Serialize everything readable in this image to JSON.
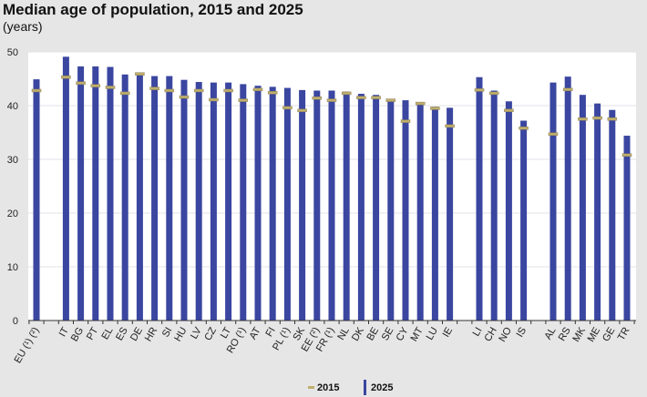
{
  "chart_data": {
    "type": "bar",
    "title": "Median age of population, 2015 and 2025",
    "subtitle": "(years)",
    "xlabel": "",
    "ylabel": "years",
    "ylim": [
      0,
      50
    ],
    "yticks": [
      0,
      10,
      20,
      30,
      40,
      50
    ],
    "ytick_labels": [
      "0",
      "10",
      "20",
      "30",
      "40",
      "50"
    ],
    "grid": true,
    "legend_position": "bottom-center",
    "groups": [
      [
        "EU (¹) (²)"
      ],
      [
        "IT",
        "BG",
        "PT",
        "EL",
        "ES",
        "DE",
        "HR",
        "SI",
        "HU",
        "LV",
        "CZ",
        "LT",
        "RO (¹)",
        "AT",
        "FI",
        "PL (¹)",
        "SK",
        "EE (²)",
        "FR (¹)",
        "NL",
        "DK",
        "BE",
        "SE",
        "CY",
        "MT",
        "LU",
        "IE"
      ],
      [
        "LI",
        "CH",
        "NO",
        "IS"
      ],
      [
        "AL",
        "RS",
        "MK",
        "ME",
        "GE",
        "TR"
      ]
    ],
    "categories": [
      "EU (¹) (²)",
      "IT",
      "BG",
      "PT",
      "EL",
      "ES",
      "DE",
      "HR",
      "SI",
      "HU",
      "LV",
      "CZ",
      "LT",
      "RO (¹)",
      "AT",
      "FI",
      "PL (¹)",
      "SK",
      "EE (²)",
      "FR (¹)",
      "NL",
      "DK",
      "BE",
      "SE",
      "CY",
      "MT",
      "LU",
      "IE",
      "LI",
      "CH",
      "NO",
      "IS",
      "AL",
      "RS",
      "MK",
      "ME",
      "GE",
      "TR"
    ],
    "series": [
      {
        "name": "2015",
        "marker": "dash",
        "color": "#bfae6a",
        "values": [
          42.8,
          45.3,
          44.2,
          43.7,
          43.4,
          42.3,
          45.9,
          43.2,
          42.8,
          41.6,
          42.8,
          41.1,
          42.8,
          41.0,
          43.0,
          42.4,
          39.6,
          39.1,
          41.4,
          41.0,
          42.3,
          41.5,
          41.5,
          41.0,
          37.1,
          40.4,
          39.5,
          36.2,
          42.9,
          42.3,
          39.1,
          35.8,
          34.7,
          43.0,
          37.5,
          37.7,
          37.5,
          30.8
        ]
      },
      {
        "name": "2025",
        "marker": "bar",
        "color": "#3a46a0",
        "values": [
          44.9,
          49.1,
          47.3,
          47.3,
          47.2,
          45.8,
          45.8,
          45.5,
          45.5,
          44.8,
          44.4,
          44.3,
          44.3,
          44.0,
          43.7,
          43.5,
          43.3,
          42.9,
          42.8,
          42.8,
          42.6,
          42.2,
          42.0,
          41.1,
          41.0,
          40.2,
          39.8,
          39.6,
          45.3,
          42.8,
          40.8,
          37.2,
          44.3,
          45.4,
          42.0,
          40.4,
          39.2,
          34.4
        ]
      }
    ]
  }
}
